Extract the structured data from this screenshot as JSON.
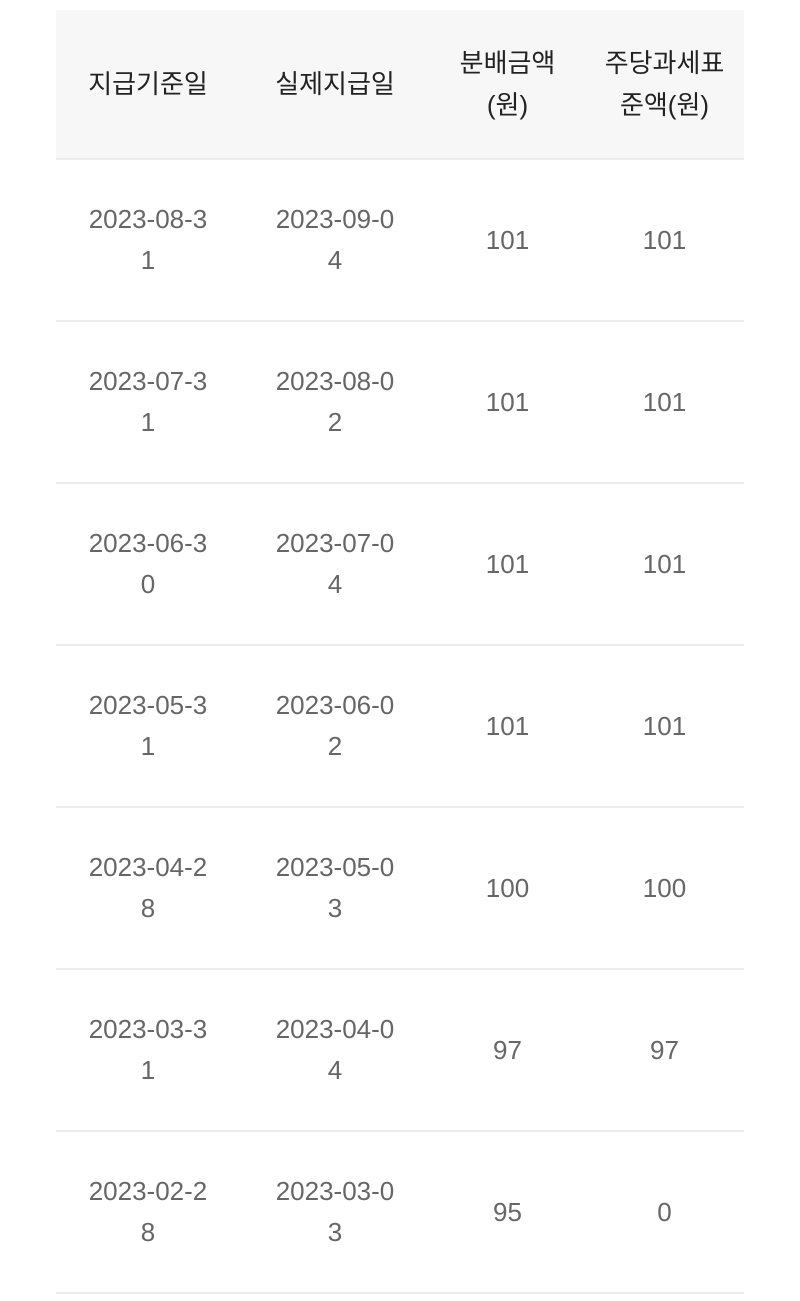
{
  "table": {
    "headers": [
      "지급기준일",
      "실제지급일",
      "분배금액(원)",
      "주당과세표준액(원)"
    ],
    "rows": [
      {
        "base_date": "2023-08-31",
        "pay_date": "2023-09-04",
        "distribution": "101",
        "taxable": "101"
      },
      {
        "base_date": "2023-07-31",
        "pay_date": "2023-08-02",
        "distribution": "101",
        "taxable": "101"
      },
      {
        "base_date": "2023-06-30",
        "pay_date": "2023-07-04",
        "distribution": "101",
        "taxable": "101"
      },
      {
        "base_date": "2023-05-31",
        "pay_date": "2023-06-02",
        "distribution": "101",
        "taxable": "101"
      },
      {
        "base_date": "2023-04-28",
        "pay_date": "2023-05-03",
        "distribution": "100",
        "taxable": "100"
      },
      {
        "base_date": "2023-03-31",
        "pay_date": "2023-04-04",
        "distribution": "97",
        "taxable": "97"
      },
      {
        "base_date": "2023-02-28",
        "pay_date": "2023-03-03",
        "distribution": "95",
        "taxable": "0"
      }
    ]
  },
  "colors": {
    "header_bg": "#f7f7f7",
    "header_text": "#222222",
    "body_text": "#666666",
    "divider": "#ececec"
  }
}
